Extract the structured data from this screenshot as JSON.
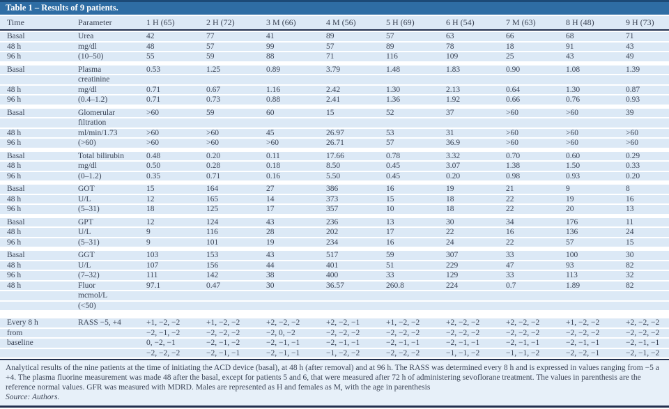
{
  "title": "Table 1 – Results of 9 patients.",
  "columns": [
    "Time",
    "Parameter",
    "1 H (65)",
    "2 H (72)",
    "3 M (66)",
    "4 M (56)",
    "5 H (69)",
    "6 H (54)",
    "7 M (63)",
    "8 H (48)",
    "9 H (73)"
  ],
  "groups": [
    [
      [
        "Basal",
        "Urea",
        "42",
        "77",
        "41",
        "89",
        "57",
        "63",
        "66",
        "68",
        "71"
      ],
      [
        "48 h",
        "mg/dl",
        "48",
        "57",
        "99",
        "57",
        "89",
        "78",
        "18",
        "91",
        "43"
      ],
      [
        "96 h",
        "(10–50)",
        "55",
        "59",
        "88",
        "71",
        "116",
        "109",
        "25",
        "43",
        "49"
      ]
    ],
    [
      [
        "Basal",
        "Plasma",
        "0.53",
        "1.25",
        "0.89",
        "3.79",
        "1.48",
        "1.83",
        "0.90",
        "1.08",
        "1.39"
      ],
      [
        "",
        "creatinine",
        "",
        "",
        "",
        "",
        "",
        "",
        "",
        "",
        ""
      ],
      [
        "48 h",
        "mg/dl",
        "0.71",
        "0.67",
        "1.16",
        "2.42",
        "1.30",
        "2.13",
        "0.64",
        "1.30",
        "0.87"
      ],
      [
        "96 h",
        "(0.4–1.2)",
        "0.71",
        "0.73",
        "0.88",
        "2.41",
        "1.36",
        "1.92",
        "0.66",
        "0.76",
        "0.93"
      ]
    ],
    [
      [
        "Basal",
        "Glomerular",
        ">60",
        "59",
        "60",
        "15",
        "52",
        "37",
        ">60",
        ">60",
        "39"
      ],
      [
        "",
        "filtration",
        "",
        "",
        "",
        "",
        "",
        "",
        "",
        "",
        ""
      ],
      [
        "48 h",
        "ml/min/1.73",
        ">60",
        ">60",
        "45",
        "26.97",
        "53",
        "31",
        ">60",
        ">60",
        ">60"
      ],
      [
        "96 h",
        "(>60)",
        ">60",
        ">60",
        ">60",
        "26.71",
        "57",
        "36.9",
        ">60",
        ">60",
        ">60"
      ]
    ],
    [
      [
        "Basal",
        "Total bilirubin",
        "0.48",
        "0.20",
        "0.11",
        "17.66",
        "0.78",
        "3.32",
        "0.70",
        "0.60",
        "0.29"
      ],
      [
        "48 h",
        "mg/dl",
        "0.50",
        "0.28",
        "0.18",
        "8.50",
        "0.45",
        "3.07",
        "1.38",
        "1.50",
        "0.33"
      ],
      [
        "96 h",
        "(0–1.2)",
        "0.35",
        "0.71",
        "0.16",
        "5.50",
        "0.45",
        "0.20",
        "0.98",
        "0.93",
        "0.20"
      ]
    ],
    [
      [
        "Basal",
        "GOT",
        "15",
        "164",
        "27",
        "386",
        "16",
        "19",
        "21",
        "9",
        "8"
      ],
      [
        "48 h",
        "U/L",
        "12",
        "165",
        "14",
        "373",
        "15",
        "18",
        "22",
        "19",
        "16"
      ],
      [
        "96 h",
        "(5–31)",
        "18",
        "125",
        "17",
        "357",
        "10",
        "18",
        "22",
        "20",
        "13"
      ]
    ],
    [
      [
        "Basal",
        "GPT",
        "12",
        "124",
        "43",
        "236",
        "13",
        "30",
        "34",
        "176",
        "11"
      ],
      [
        "48 h",
        "U/L",
        "9",
        "116",
        "28",
        "202",
        "17",
        "22",
        "16",
        "136",
        "24"
      ],
      [
        "96 h",
        "(5–31)",
        "9",
        "101",
        "19",
        "234",
        "16",
        "24",
        "22",
        "57",
        "15"
      ]
    ],
    [
      [
        "Basal",
        "GGT",
        "103",
        "153",
        "43",
        "517",
        "59",
        "307",
        "33",
        "100",
        "30"
      ],
      [
        "48 h",
        "U/L",
        "107",
        "156",
        "44",
        "401",
        "51",
        "229",
        "47",
        "93",
        "82"
      ],
      [
        "96 h",
        "(7–32)",
        "111",
        "142",
        "38",
        "400",
        "33",
        "129",
        "33",
        "113",
        "32"
      ],
      [
        "48 h",
        "Fluor",
        "97.1",
        "0.47",
        "30",
        "36.57",
        "260.8",
        "224",
        "0.7",
        "1.89",
        "82"
      ],
      [
        "",
        "mcmol/L",
        "",
        "",
        "",
        "",
        "",
        "",
        "",
        "",
        ""
      ],
      [
        "",
        "(<50)",
        "",
        "",
        "",
        "",
        "",
        "",
        "",
        "",
        ""
      ]
    ],
    [
      [
        "Every 8 h",
        "RASS −5, +4",
        "+1, −2, −2",
        "+1, −2, −2",
        "+2, −2, −2",
        "+2, −2, −1",
        "+1, −2, −2",
        "+2, −2, −2",
        "+2, −2, −2",
        "+1, −2, −2",
        "+2, −2, −2"
      ],
      [
        "from",
        "",
        "−2, −1, −2",
        "−2, −2, −2",
        "−2, 0, −2",
        "−2, −2, −2",
        "−2, −2, −2",
        "−2, −2, −2",
        "−2, −2, −2",
        "−2, −2, −2",
        "−2, −2, −2"
      ],
      [
        "baseline",
        "",
        "0, −2, −1",
        "−2, −1, −2",
        "−2, −1, −1",
        "−2, −1, −1",
        "−2, −1, −1",
        "−2, −1, −1",
        "−2, −1, −1",
        "−2, −1, −1",
        "−2, −1, −1"
      ],
      [
        "",
        "",
        "−2, −2, −2",
        "−2, −1, −1",
        "−2, −1, −1",
        "−1, −2, −2",
        "−2, −2, −2",
        "−1, −1, −2",
        "−1, −1, −2",
        "−2, −2, −1",
        "−2, −1, −2"
      ]
    ]
  ],
  "footnote": "Analytical results of the nine patients at the time of initiating the ACD device (basal), at 48 h (after removal) and at 96 h. The RASS was determined every 8 h and is expressed in values ranging from −5 a +4. The plasma fluorine measurement was made 48 after the basal, except for patients 5 and 6, that were measured after 72 h of administering sevoflorane treatment. The values in parenthesis are the reference normal values. GFR was measured with MDRD. Males are represented as H and females as M, with the age in parenthesis",
  "source": "Source: Authors.",
  "colors": {
    "title_bar": "#2e6da4",
    "title_bar_top_edge": "#1c4a77",
    "row_band": "#dce9f6",
    "footer_band": "#e7f0f9",
    "rule": "#22304f",
    "text": "#3c4556",
    "title_text": "#ffffff"
  }
}
